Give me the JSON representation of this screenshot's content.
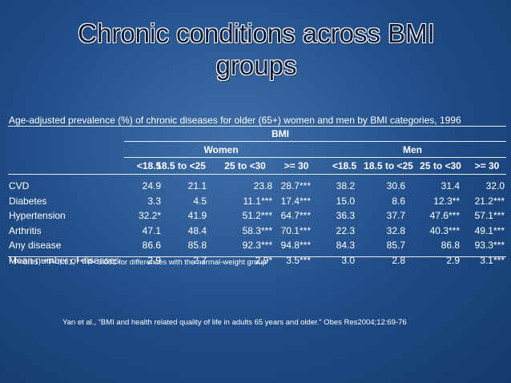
{
  "slide": {
    "title_line1": "Chronic conditions across BMI",
    "title_line2": "groups",
    "caption": "Age-adjusted prevalence (%) of chronic diseases for older (65+) women and men by BMI categories, 1996",
    "footnote": "* P<0.05, **P<0.01, *** P<0.001 for differences with the normal-weight group",
    "citation": "Yan et al., “BMI and health related quality of life in adults 65 years and older.” Obes Res2004;12:69-76"
  },
  "table": {
    "group_header": "BMI",
    "women_label": "Women",
    "men_label": "Men",
    "columns": [
      "<18.5",
      "18.5 to <25",
      "25 to <30",
      ">= 30",
      "<18.5",
      "18.5 to <25",
      "25 to <30",
      ">= 30"
    ],
    "rows": [
      {
        "label": "CVD",
        "values": [
          "24.9",
          "21.1",
          "23.8",
          "28.7***",
          "38.2",
          "30.6",
          "31.4",
          "32.0"
        ]
      },
      {
        "label": "Diabetes",
        "values": [
          "3.3",
          "4.5",
          "11.1***",
          "17.4***",
          "15.0",
          "8.6",
          "12.3**",
          "21.2***"
        ]
      },
      {
        "label": "Hypertension",
        "values": [
          "32.2*",
          "41.9",
          "51.2***",
          "64.7***",
          "36.3",
          "37.7",
          "47.6***",
          "57.1***"
        ]
      },
      {
        "label": "Arthritis",
        "values": [
          "47.1",
          "48.4",
          "58.3***",
          "70.1***",
          "22.3",
          "32.8",
          "40.3***",
          "49.1***"
        ]
      },
      {
        "label": "Any disease",
        "values": [
          "86.6",
          "85.8",
          "92.3***",
          "94.8***",
          "84.3",
          "85.7",
          "86.8",
          "93.3***"
        ]
      },
      {
        "label": "Mean number of diseases",
        "values": [
          "2.9",
          "2.7",
          "2.9*",
          "3.5***",
          "3.0",
          "2.8",
          "2.9",
          "3.1***"
        ]
      }
    ]
  }
}
